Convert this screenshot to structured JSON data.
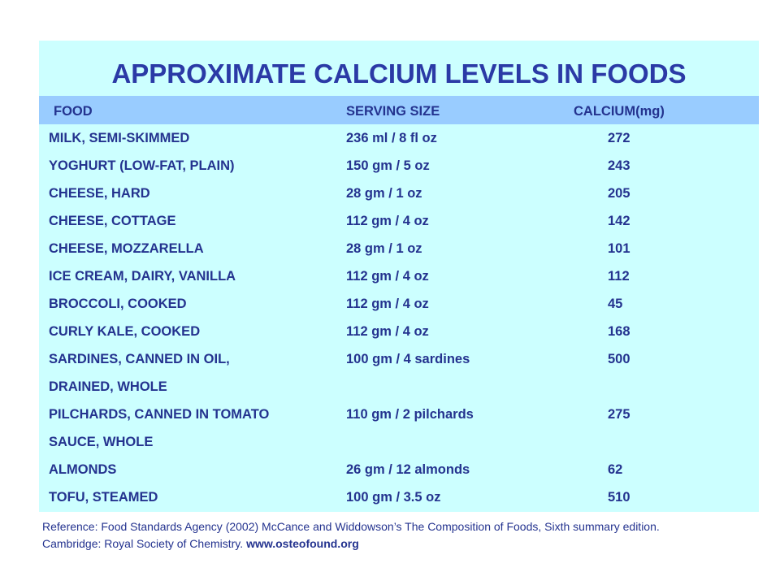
{
  "title": "APPROXIMATE CALCIUM LEVELS IN FOODS",
  "table": {
    "headers": [
      "FOOD",
      "SERVING SIZE",
      "CALCIUM(mg)"
    ],
    "rows": [
      {
        "food": [
          "MILK, SEMI-SKIMMED"
        ],
        "serving": "236 ml / 8 fl oz",
        "calcium": 272
      },
      {
        "food": [
          "YOGHURT (LOW-FAT, PLAIN)"
        ],
        "serving": "150 gm / 5 oz",
        "calcium": 243
      },
      {
        "food": [
          "CHEESE, HARD"
        ],
        "serving": "28 gm / 1 oz",
        "calcium": 205
      },
      {
        "food": [
          "CHEESE, COTTAGE"
        ],
        "serving": "112 gm / 4 oz",
        "calcium": 142
      },
      {
        "food": [
          "CHEESE, MOZZARELLA"
        ],
        "serving": "28 gm / 1 oz",
        "calcium": 101
      },
      {
        "food": [
          "ICE CREAM, DAIRY, VANILLA"
        ],
        "serving": "112 gm / 4 oz",
        "calcium": 112
      },
      {
        "food": [
          "BROCCOLI, COOKED"
        ],
        "serving": "112 gm / 4 oz",
        "calcium": 45
      },
      {
        "food": [
          "CURLY KALE, COOKED"
        ],
        "serving": "112 gm / 4 oz",
        "calcium": 168
      },
      {
        "food": [
          "SARDINES, CANNED IN OIL,",
          "DRAINED, WHOLE"
        ],
        "serving": "100 gm / 4 sardines",
        "calcium": 500
      },
      {
        "food": [
          "PILCHARDS, CANNED IN TOMATO",
          "SAUCE, WHOLE"
        ],
        "serving": "110 gm / 2 pilchards",
        "calcium": 275
      },
      {
        "food": [
          "ALMONDS"
        ],
        "serving": "26 gm / 12 almonds",
        "calcium": 62
      },
      {
        "food": [
          "TOFU, STEAMED"
        ],
        "serving": "100 gm / 3.5 oz",
        "calcium": 510
      }
    ]
  },
  "reference": {
    "line1": "Reference: Food Standards Agency (2002) McCance and Widdowson’s The Composition of Foods, Sixth summary edition.",
    "line2": "Cambridge: Royal Society of Chemistry.",
    "link": "www.osteofound.org"
  }
}
